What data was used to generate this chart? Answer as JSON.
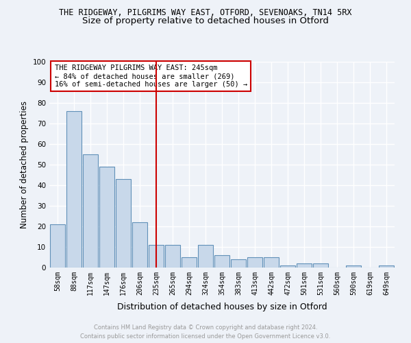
{
  "title1": "THE RIDGEWAY, PILGRIMS WAY EAST, OTFORD, SEVENOAKS, TN14 5RX",
  "title2": "Size of property relative to detached houses in Otford",
  "xlabel": "Distribution of detached houses by size in Otford",
  "ylabel": "Number of detached properties",
  "categories": [
    "58sqm",
    "88sqm",
    "117sqm",
    "147sqm",
    "176sqm",
    "206sqm",
    "235sqm",
    "265sqm",
    "294sqm",
    "324sqm",
    "354sqm",
    "383sqm",
    "413sqm",
    "442sqm",
    "472sqm",
    "501sqm",
    "531sqm",
    "560sqm",
    "590sqm",
    "619sqm",
    "649sqm"
  ],
  "values": [
    21,
    76,
    55,
    49,
    43,
    22,
    11,
    11,
    5,
    11,
    6,
    4,
    5,
    5,
    1,
    2,
    2,
    0,
    1,
    0,
    1
  ],
  "bar_color": "#c8d8ea",
  "bar_edge_color": "#6090b8",
  "background_color": "#eef2f8",
  "grid_color": "#ffffff",
  "annotation_text_line1": "THE RIDGEWAY PILGRIMS WAY EAST: 245sqm",
  "annotation_text_line2": "← 84% of detached houses are smaller (269)",
  "annotation_text_line3": "16% of semi-detached houses are larger (50) →",
  "annotation_box_color": "#ffffff",
  "annotation_border_color": "#cc0000",
  "vline_color": "#cc0000",
  "vline_x": 6.5,
  "ylim": [
    0,
    100
  ],
  "yticks": [
    0,
    10,
    20,
    30,
    40,
    50,
    60,
    70,
    80,
    90,
    100
  ],
  "footer": "Contains HM Land Registry data © Crown copyright and database right 2024.\nContains public sector information licensed under the Open Government Licence v3.0.",
  "footer_color": "#999999",
  "title1_fontsize": 8.5,
  "title2_fontsize": 9.5,
  "tick_fontsize": 7,
  "ylabel_fontsize": 8.5,
  "xlabel_fontsize": 9,
  "annotation_fontsize": 7.5,
  "footer_fontsize": 6
}
